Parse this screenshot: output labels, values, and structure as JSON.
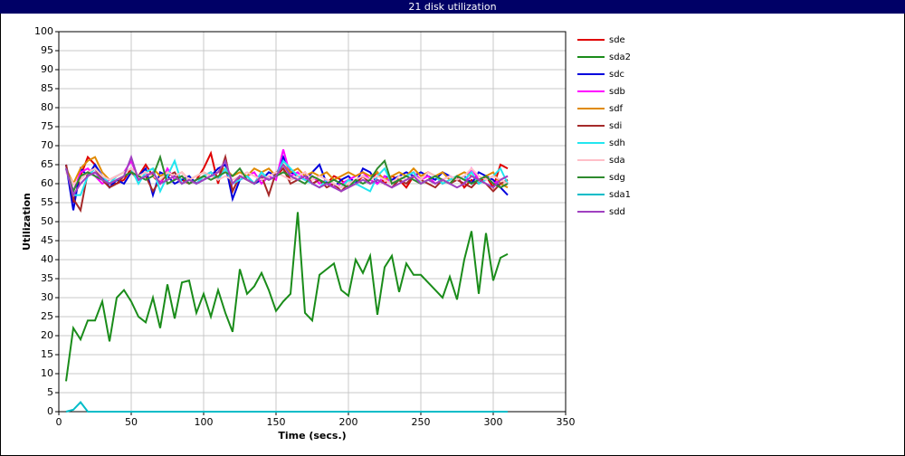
{
  "chart_data": {
    "type": "line",
    "title": "21 disk utilization",
    "xlabel": "Time (secs.)",
    "ylabel": "Utilization",
    "xlim": [
      0,
      350
    ],
    "xticks": [
      0,
      50,
      100,
      150,
      200,
      250,
      300,
      350
    ],
    "ylim": [
      0,
      100
    ],
    "yticks": [
      0,
      5,
      10,
      15,
      20,
      25,
      30,
      35,
      40,
      45,
      50,
      55,
      60,
      65,
      70,
      75,
      80,
      85,
      90,
      95,
      100
    ],
    "grid": true,
    "legend": "right",
    "x": [
      5,
      10,
      15,
      20,
      25,
      30,
      35,
      40,
      45,
      50,
      55,
      60,
      65,
      70,
      75,
      80,
      85,
      90,
      95,
      100,
      105,
      110,
      115,
      120,
      125,
      130,
      135,
      140,
      145,
      150,
      155,
      160,
      165,
      170,
      175,
      180,
      185,
      190,
      195,
      200,
      205,
      210,
      215,
      220,
      225,
      230,
      235,
      240,
      245,
      250,
      255,
      260,
      265,
      270,
      275,
      280,
      285,
      290,
      295,
      300,
      305,
      310
    ],
    "series": [
      {
        "name": "sde",
        "color": "#e00000",
        "values": [
          65,
          55,
          62,
          67,
          65,
          61,
          60,
          60,
          61,
          64,
          62,
          65,
          62,
          60,
          63,
          62,
          61,
          60,
          61,
          64,
          68,
          60,
          67,
          58,
          62,
          61,
          60,
          63,
          61,
          62,
          64,
          61,
          62,
          63,
          60,
          61,
          60,
          62,
          61,
          59,
          60,
          62,
          61,
          63,
          60,
          62,
          61,
          59,
          62,
          61,
          63,
          62,
          60,
          61,
          62,
          59,
          61,
          60,
          62,
          59,
          65,
          64
        ]
      },
      {
        "name": "sda2",
        "color": "#1a8c1a",
        "values": [
          8,
          22,
          19,
          24,
          24,
          29,
          18.5,
          30,
          32,
          29,
          25,
          23.5,
          30,
          22,
          33.5,
          24.5,
          34,
          34.5,
          26,
          31,
          25,
          32,
          26,
          21,
          37.5,
          31,
          33,
          36.5,
          32,
          26.5,
          29,
          31,
          52.5,
          26,
          24,
          36,
          37.5,
          39,
          32,
          30.5,
          40,
          36.5,
          41,
          25.5,
          38,
          41,
          31.5,
          39,
          36,
          36,
          34,
          32,
          30,
          35.5,
          29.5,
          40,
          47.5,
          31,
          47,
          34.5,
          40.5,
          41.5
        ]
      },
      {
        "name": "sdc",
        "color": "#0000dd",
        "values": [
          65,
          53,
          64,
          62,
          65,
          62,
          59,
          61,
          60,
          63,
          62,
          64,
          57,
          63,
          62,
          60,
          61,
          62,
          60,
          61,
          62,
          64,
          65,
          56,
          61,
          62,
          60,
          61,
          63,
          62,
          67,
          63,
          62,
          61,
          63,
          65,
          60,
          59,
          61,
          62,
          60,
          64,
          63,
          60,
          62,
          61,
          62,
          63,
          62,
          63,
          62,
          61,
          63,
          62,
          61,
          62,
          60,
          63,
          62,
          61,
          59,
          57
        ]
      },
      {
        "name": "sdb",
        "color": "#ff00ff",
        "values": [
          64,
          58,
          63,
          64,
          62,
          60,
          61,
          62,
          63,
          66,
          61,
          62,
          63,
          60,
          64,
          61,
          62,
          60,
          61,
          62,
          63,
          61,
          64,
          60,
          61,
          62,
          63,
          60,
          62,
          61,
          69,
          62,
          63,
          61,
          62,
          60,
          61,
          59,
          60,
          61,
          62,
          63,
          61,
          60,
          62,
          60,
          61,
          62,
          63,
          61,
          62,
          60,
          61,
          62,
          61,
          60,
          64,
          61,
          62,
          60,
          61,
          62
        ]
      },
      {
        "name": "sdf",
        "color": "#e08a00",
        "values": [
          64,
          60,
          64,
          66,
          67,
          63,
          61,
          62,
          63,
          64,
          62,
          63,
          64,
          62,
          63,
          62,
          63,
          61,
          62,
          63,
          62,
          63,
          64,
          62,
          63,
          62,
          64,
          63,
          64,
          62,
          65,
          63,
          64,
          62,
          63,
          62,
          63,
          61,
          62,
          63,
          62,
          63,
          62,
          63,
          61,
          62,
          63,
          62,
          64,
          62,
          63,
          62,
          63,
          61,
          62,
          63,
          62,
          61,
          62,
          63,
          60,
          59
        ]
      },
      {
        "name": "sdi",
        "color": "#a52a2a",
        "values": [
          65,
          56,
          53,
          63,
          64,
          61,
          59,
          60,
          62,
          63,
          61,
          62,
          58,
          61,
          62,
          63,
          60,
          61,
          60,
          62,
          63,
          61,
          67,
          58,
          62,
          61,
          60,
          62,
          57,
          63,
          64,
          60,
          61,
          62,
          60,
          61,
          59,
          60,
          58,
          60,
          61,
          62,
          60,
          61,
          60,
          59,
          61,
          60,
          62,
          61,
          60,
          59,
          61,
          60,
          61,
          60,
          59,
          61,
          60,
          58,
          60,
          61
        ]
      },
      {
        "name": "sdh",
        "color": "#22e6f0",
        "values": [
          64,
          57,
          57,
          62,
          64,
          62,
          60,
          62,
          63,
          64,
          60,
          63,
          64,
          58,
          62,
          66,
          60,
          61,
          60,
          62,
          63,
          61,
          64,
          60,
          61,
          62,
          60,
          63,
          61,
          62,
          66,
          64,
          62,
          61,
          60,
          59,
          61,
          60,
          59,
          61,
          60,
          59,
          58,
          62,
          64,
          60,
          61,
          62,
          63,
          60,
          61,
          62,
          60,
          61,
          62,
          61,
          63,
          60,
          61,
          62,
          64,
          60
        ]
      },
      {
        "name": "sda",
        "color": "#ffbfc8",
        "values": [
          63,
          60,
          61,
          63,
          64,
          62,
          61,
          62,
          63,
          64,
          62,
          63,
          62,
          61,
          63,
          62,
          63,
          61,
          62,
          63,
          62,
          61,
          62,
          61,
          62,
          63,
          62,
          61,
          62,
          63,
          62,
          61,
          62,
          63,
          61,
          62,
          61,
          60,
          59,
          60,
          61,
          62,
          61,
          62,
          61,
          60,
          62,
          61,
          62,
          61,
          63,
          62,
          61,
          62,
          61,
          62,
          64,
          62,
          61,
          62,
          61,
          60
        ]
      },
      {
        "name": "sdg",
        "color": "#2e8b2e",
        "values": [
          64,
          58,
          62,
          63,
          62,
          61,
          60,
          61,
          62,
          63,
          62,
          61,
          62,
          67,
          60,
          61,
          62,
          60,
          61,
          62,
          61,
          62,
          63,
          62,
          64,
          61,
          60,
          62,
          61,
          62,
          63,
          62,
          61,
          60,
          62,
          61,
          60,
          61,
          60,
          59,
          61,
          60,
          61,
          64,
          66,
          60,
          61,
          62,
          61,
          60,
          61,
          62,
          61,
          60,
          62,
          61,
          60,
          61,
          62,
          60,
          59,
          60
        ]
      },
      {
        "name": "sda1",
        "color": "#00bcc8",
        "values": [
          0,
          0.5,
          2.5,
          0,
          0,
          0,
          0,
          0,
          0,
          0,
          0,
          0,
          0,
          0,
          0,
          0,
          0,
          0,
          0,
          0,
          0,
          0,
          0,
          0,
          0,
          0,
          0,
          0,
          0,
          0,
          0,
          0,
          0,
          0,
          0,
          0,
          0,
          0,
          0,
          0,
          0,
          0,
          0,
          0,
          0,
          0,
          0,
          0,
          0,
          0,
          0,
          0,
          0,
          0,
          0,
          0,
          0,
          0,
          0,
          0,
          0,
          0
        ]
      },
      {
        "name": "sdd",
        "color": "#a040c0",
        "values": [
          64,
          57,
          60,
          62,
          63,
          61,
          60,
          61,
          62,
          67,
          61,
          62,
          63,
          60,
          61,
          62,
          60,
          61,
          60,
          61,
          62,
          63,
          66,
          60,
          62,
          61,
          60,
          62,
          61,
          62,
          65,
          62,
          61,
          62,
          60,
          59,
          60,
          59,
          58,
          59,
          60,
          61,
          60,
          61,
          60,
          59,
          60,
          61,
          62,
          60,
          61,
          60,
          61,
          60,
          59,
          60,
          62,
          61,
          60,
          59,
          61,
          62
        ]
      }
    ]
  }
}
